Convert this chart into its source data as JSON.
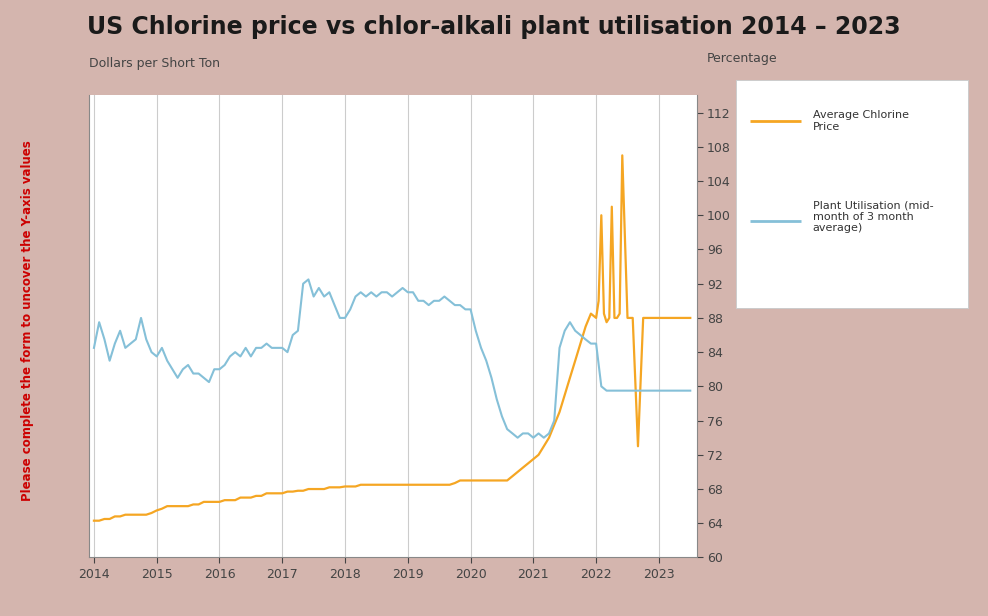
{
  "title": "US Chlorine price vs chlor-alkali plant utilisation 2014 – 2023",
  "title_fontsize": 17,
  "ylabel_left": "Dollars per Short Ton",
  "ylabel_right": "Percentage",
  "background_color": "#d4b5ae",
  "plot_bg_color": "#ffffff",
  "watermark_text": "Please complete the form to uncover the Y-axis values",
  "ylim_right": [
    60,
    114
  ],
  "yticks_right": [
    60,
    64,
    68,
    72,
    76,
    80,
    84,
    88,
    92,
    96,
    100,
    104,
    108,
    112
  ],
  "xlim": [
    2013.92,
    2023.6
  ],
  "xticks": [
    2014,
    2015,
    2016,
    2017,
    2018,
    2019,
    2020,
    2021,
    2022,
    2023
  ],
  "chlorine_color": "#f5a623",
  "utilisation_color": "#85c0d8",
  "legend_label1": "Average Chlorine\nPrice",
  "legend_label2": "Plant Utilisation (mid-\nmonth of 3 month\naverage)",
  "grid_color": "#cccccc",
  "chlorine_x": [
    2014.0,
    2014.083,
    2014.167,
    2014.25,
    2014.333,
    2014.417,
    2014.5,
    2014.583,
    2014.667,
    2014.75,
    2014.833,
    2014.917,
    2015.0,
    2015.083,
    2015.167,
    2015.25,
    2015.333,
    2015.417,
    2015.5,
    2015.583,
    2015.667,
    2015.75,
    2015.833,
    2015.917,
    2016.0,
    2016.083,
    2016.167,
    2016.25,
    2016.333,
    2016.417,
    2016.5,
    2016.583,
    2016.667,
    2016.75,
    2016.833,
    2016.917,
    2017.0,
    2017.083,
    2017.167,
    2017.25,
    2017.333,
    2017.417,
    2017.5,
    2017.583,
    2017.667,
    2017.75,
    2017.833,
    2017.917,
    2018.0,
    2018.083,
    2018.167,
    2018.25,
    2018.333,
    2018.417,
    2018.5,
    2018.583,
    2018.667,
    2018.75,
    2018.833,
    2018.917,
    2019.0,
    2019.083,
    2019.167,
    2019.25,
    2019.333,
    2019.417,
    2019.5,
    2019.583,
    2019.667,
    2019.75,
    2019.833,
    2019.917,
    2020.0,
    2020.083,
    2020.167,
    2020.25,
    2020.333,
    2020.417,
    2020.5,
    2020.583,
    2020.667,
    2020.75,
    2020.833,
    2020.917,
    2021.0,
    2021.083,
    2021.167,
    2021.25,
    2021.333,
    2021.417,
    2021.5,
    2021.583,
    2021.667,
    2021.75,
    2021.833,
    2021.917,
    2022.0,
    2022.04,
    2022.083,
    2022.125,
    2022.167,
    2022.21,
    2022.25,
    2022.292,
    2022.333,
    2022.375,
    2022.417,
    2022.5,
    2022.583,
    2022.667,
    2022.75,
    2022.833,
    2022.917,
    2023.0,
    2023.083,
    2023.167,
    2023.25,
    2023.333,
    2023.417,
    2023.5
  ],
  "chlorine_y": [
    64.3,
    64.3,
    64.5,
    64.5,
    64.8,
    64.8,
    65.0,
    65.0,
    65.0,
    65.0,
    65.0,
    65.2,
    65.5,
    65.7,
    66.0,
    66.0,
    66.0,
    66.0,
    66.0,
    66.2,
    66.2,
    66.5,
    66.5,
    66.5,
    66.5,
    66.7,
    66.7,
    66.7,
    67.0,
    67.0,
    67.0,
    67.2,
    67.2,
    67.5,
    67.5,
    67.5,
    67.5,
    67.7,
    67.7,
    67.8,
    67.8,
    68.0,
    68.0,
    68.0,
    68.0,
    68.2,
    68.2,
    68.2,
    68.3,
    68.3,
    68.3,
    68.5,
    68.5,
    68.5,
    68.5,
    68.5,
    68.5,
    68.5,
    68.5,
    68.5,
    68.5,
    68.5,
    68.5,
    68.5,
    68.5,
    68.5,
    68.5,
    68.5,
    68.5,
    68.7,
    69.0,
    69.0,
    69.0,
    69.0,
    69.0,
    69.0,
    69.0,
    69.0,
    69.0,
    69.0,
    69.5,
    70.0,
    70.5,
    71.0,
    71.5,
    72.0,
    73.0,
    74.0,
    75.5,
    77.0,
    79.0,
    81.0,
    83.0,
    85.0,
    87.0,
    88.5,
    88.0,
    90.0,
    100.0,
    88.5,
    87.5,
    88.0,
    101.0,
    88.0,
    88.0,
    88.5,
    107.0,
    88.0,
    88.0,
    73.0,
    88.0,
    88.0,
    88.0,
    88.0,
    88.0,
    88.0,
    88.0,
    88.0,
    88.0,
    88.0
  ],
  "utilisation_x": [
    2014.0,
    2014.083,
    2014.167,
    2014.25,
    2014.333,
    2014.417,
    2014.5,
    2014.583,
    2014.667,
    2014.75,
    2014.833,
    2014.917,
    2015.0,
    2015.083,
    2015.167,
    2015.25,
    2015.333,
    2015.417,
    2015.5,
    2015.583,
    2015.667,
    2015.75,
    2015.833,
    2015.917,
    2016.0,
    2016.083,
    2016.167,
    2016.25,
    2016.333,
    2016.417,
    2016.5,
    2016.583,
    2016.667,
    2016.75,
    2016.833,
    2016.917,
    2017.0,
    2017.083,
    2017.167,
    2017.25,
    2017.333,
    2017.417,
    2017.5,
    2017.583,
    2017.667,
    2017.75,
    2017.833,
    2017.917,
    2018.0,
    2018.083,
    2018.167,
    2018.25,
    2018.333,
    2018.417,
    2018.5,
    2018.583,
    2018.667,
    2018.75,
    2018.833,
    2018.917,
    2019.0,
    2019.083,
    2019.167,
    2019.25,
    2019.333,
    2019.417,
    2019.5,
    2019.583,
    2019.667,
    2019.75,
    2019.833,
    2019.917,
    2020.0,
    2020.083,
    2020.167,
    2020.25,
    2020.333,
    2020.417,
    2020.5,
    2020.583,
    2020.667,
    2020.75,
    2020.833,
    2020.917,
    2021.0,
    2021.083,
    2021.167,
    2021.25,
    2021.333,
    2021.417,
    2021.5,
    2021.583,
    2021.667,
    2021.75,
    2021.83,
    2021.917,
    2022.0,
    2022.083,
    2022.167,
    2022.333,
    2022.5,
    2022.667,
    2022.833,
    2023.0,
    2023.167,
    2023.333,
    2023.5
  ],
  "utilisation_y": [
    84.5,
    87.5,
    85.5,
    83.0,
    85.0,
    86.5,
    84.5,
    85.0,
    85.5,
    88.0,
    85.5,
    84.0,
    83.5,
    84.5,
    83.0,
    82.0,
    81.0,
    82.0,
    82.5,
    81.5,
    81.5,
    81.0,
    80.5,
    82.0,
    82.0,
    82.5,
    83.5,
    84.0,
    83.5,
    84.5,
    83.5,
    84.5,
    84.5,
    85.0,
    84.5,
    84.5,
    84.5,
    84.0,
    86.0,
    86.5,
    92.0,
    92.5,
    90.5,
    91.5,
    90.5,
    91.0,
    89.5,
    88.0,
    88.0,
    89.0,
    90.5,
    91.0,
    90.5,
    91.0,
    90.5,
    91.0,
    91.0,
    90.5,
    91.0,
    91.5,
    91.0,
    91.0,
    90.0,
    90.0,
    89.5,
    90.0,
    90.0,
    90.5,
    90.0,
    89.5,
    89.5,
    89.0,
    89.0,
    86.5,
    84.5,
    83.0,
    81.0,
    78.5,
    76.5,
    75.0,
    74.5,
    74.0,
    74.5,
    74.5,
    74.0,
    74.5,
    74.0,
    74.5,
    76.0,
    84.5,
    86.5,
    87.5,
    86.5,
    86.0,
    85.5,
    85.0,
    85.0,
    80.0,
    79.5,
    79.5,
    79.5,
    79.5,
    79.5,
    79.5,
    79.5,
    79.5,
    79.5
  ]
}
